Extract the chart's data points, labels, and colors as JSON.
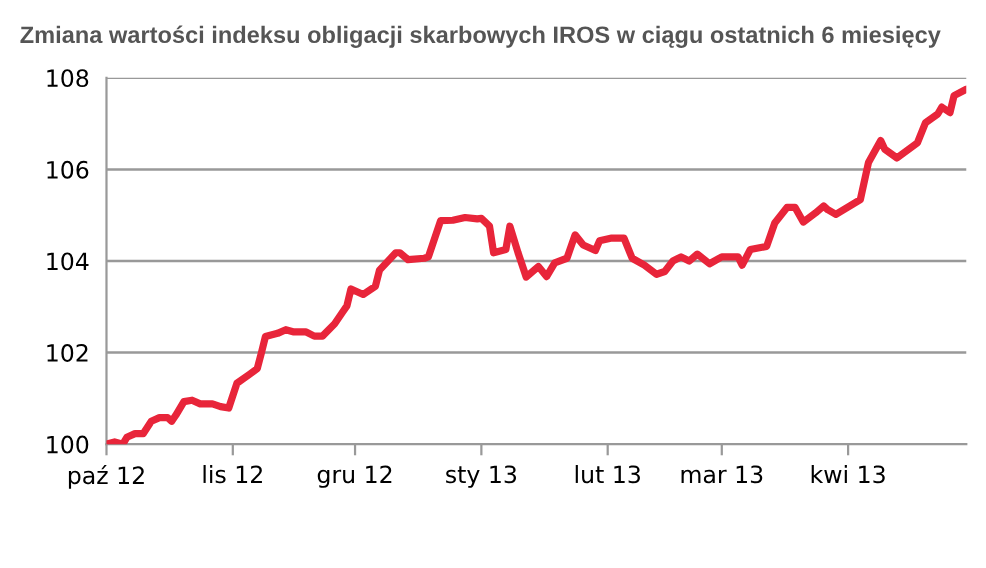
{
  "chart_data": {
    "type": "line",
    "title": "Zmiana wartości indeksu obligacji skarbowych IROS w ciągu ostatnich 6 miesięcy",
    "series": [
      {
        "color": "#e8253a",
        "x": [
          "2012-10-01",
          "2012-10-03",
          "2012-10-05",
          "2012-10-06",
          "2012-10-08",
          "2012-10-10",
          "2012-10-12",
          "2012-10-14",
          "2012-10-16",
          "2012-10-17",
          "2012-10-18",
          "2012-10-20",
          "2012-10-22",
          "2012-10-24",
          "2012-10-27",
          "2012-10-29",
          "2012-10-31",
          "2012-11-02",
          "2012-11-05",
          "2012-11-07",
          "2012-11-08",
          "2012-11-09",
          "2012-11-12",
          "2012-11-14",
          "2012-11-16",
          "2012-11-19",
          "2012-11-21",
          "2012-11-23",
          "2012-11-26",
          "2012-11-28",
          "2012-11-29",
          "2012-11-30",
          "2012-12-03",
          "2012-12-06",
          "2012-12-07",
          "2012-12-11",
          "2012-12-12",
          "2012-12-14",
          "2012-12-18",
          "2012-12-19",
          "2012-12-22",
          "2012-12-25",
          "2012-12-28",
          "2012-12-31",
          "2013-01-01",
          "2013-01-03",
          "2013-01-04",
          "2013-01-07",
          "2013-01-08",
          "2013-01-10",
          "2013-01-12",
          "2013-01-15",
          "2013-01-17",
          "2013-01-19",
          "2013-01-22",
          "2013-01-24",
          "2013-01-26",
          "2013-01-29",
          "2013-01-30",
          "2013-02-02",
          "2013-02-05",
          "2013-02-07",
          "2013-02-10",
          "2013-02-13",
          "2013-02-15",
          "2013-02-17",
          "2013-02-19",
          "2013-02-21",
          "2013-02-23",
          "2013-02-26",
          "2013-03-01",
          "2013-03-05",
          "2013-03-06",
          "2013-03-08",
          "2013-03-12",
          "2013-03-14",
          "2013-03-17",
          "2013-03-19",
          "2013-03-21",
          "2013-03-24",
          "2013-03-26",
          "2013-03-27",
          "2013-03-29",
          "2013-04-04",
          "2013-04-06",
          "2013-04-09",
          "2013-04-10",
          "2013-04-13",
          "2013-04-18",
          "2013-04-20",
          "2013-04-23",
          "2013-04-24",
          "2013-04-26",
          "2013-04-27",
          "2013-04-30"
        ],
        "values": [
          100.0,
          100.05,
          100.0,
          100.15,
          100.23,
          100.23,
          100.5,
          100.58,
          100.58,
          100.5,
          100.63,
          100.93,
          100.96,
          100.88,
          100.88,
          100.82,
          100.79,
          101.33,
          101.52,
          101.65,
          101.99,
          102.35,
          102.42,
          102.5,
          102.45,
          102.45,
          102.36,
          102.36,
          102.63,
          102.89,
          103.02,
          103.39,
          103.27,
          103.45,
          103.8,
          104.18,
          104.18,
          104.03,
          104.06,
          104.09,
          104.88,
          104.89,
          104.95,
          104.92,
          104.93,
          104.76,
          104.18,
          104.25,
          104.76,
          104.18,
          103.65,
          103.88,
          103.66,
          103.96,
          104.06,
          104.57,
          104.35,
          104.23,
          104.44,
          104.5,
          104.5,
          104.06,
          103.91,
          103.71,
          103.77,
          104.0,
          104.09,
          104.0,
          104.15,
          103.94,
          104.09,
          104.09,
          103.91,
          104.25,
          104.32,
          104.83,
          105.17,
          105.17,
          104.85,
          105.05,
          105.2,
          105.12,
          105.02,
          105.34,
          106.15,
          106.63,
          106.44,
          106.25,
          106.58,
          107.02,
          107.21,
          107.36,
          107.24,
          107.61,
          107.75
        ]
      }
    ],
    "xlim": [
      "2012-10-01",
      "2013-04-30"
    ],
    "xticks": [
      {
        "value": "2012-10-01",
        "label": "paź 12"
      },
      {
        "value": "2012-11-01",
        "label": "lis 12"
      },
      {
        "value": "2012-12-01",
        "label": "gru 12"
      },
      {
        "value": "2013-01-01",
        "label": "sty 13"
      },
      {
        "value": "2013-02-01",
        "label": "lut 13"
      },
      {
        "value": "2013-03-01",
        "label": "mar 13"
      },
      {
        "value": "2013-04-01",
        "label": "kwi 13"
      }
    ],
    "ylim": [
      100,
      108
    ],
    "yticks": [
      100,
      102,
      104,
      106,
      108
    ],
    "grid": "y",
    "marker": "none",
    "line_style": "solid",
    "legend": false
  }
}
